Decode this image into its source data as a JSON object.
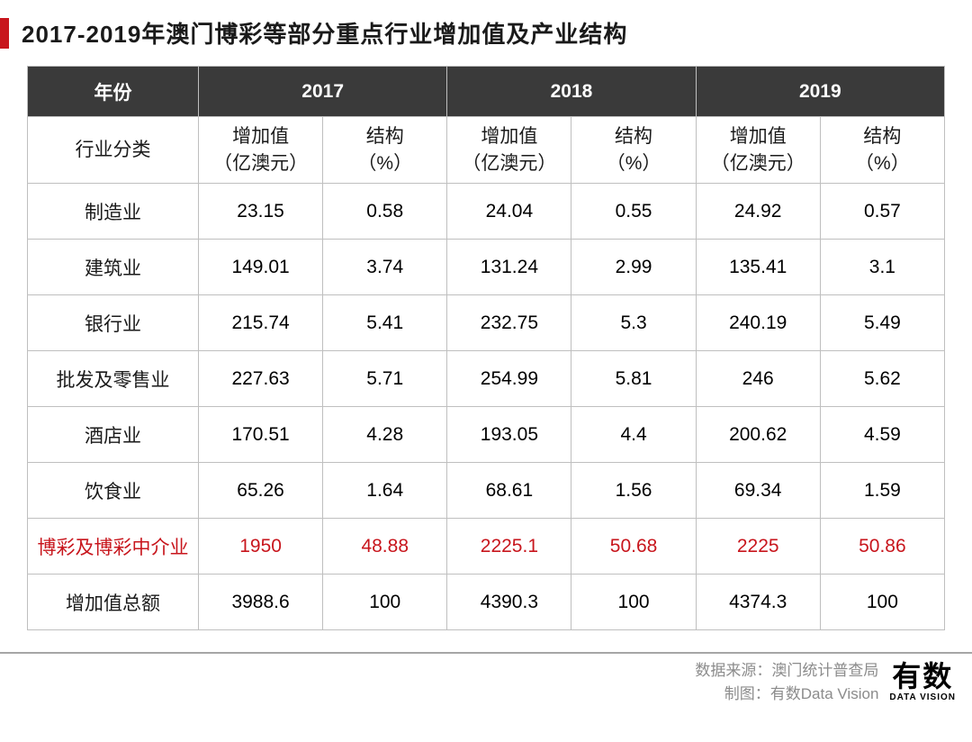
{
  "title": "2017-2019年澳门博彩等部分重点行业增加值及产业结构",
  "table": {
    "header": {
      "year_label": "年份",
      "years": [
        "2017",
        "2018",
        "2019"
      ],
      "category_label": "行业分类",
      "sub_headers": {
        "value": "增加值\n（亿澳元）",
        "pct": "结构\n（%）"
      }
    },
    "rows": [
      {
        "label": "制造业",
        "v17": "23.15",
        "p17": "0.58",
        "v18": "24.04",
        "p18": "0.55",
        "v19": "24.92",
        "p19": "0.57",
        "highlight": false
      },
      {
        "label": "建筑业",
        "v17": "149.01",
        "p17": "3.74",
        "v18": "131.24",
        "p18": "2.99",
        "v19": "135.41",
        "p19": "3.1",
        "highlight": false
      },
      {
        "label": "银行业",
        "v17": "215.74",
        "p17": "5.41",
        "v18": "232.75",
        "p18": "5.3",
        "v19": "240.19",
        "p19": "5.49",
        "highlight": false
      },
      {
        "label": "批发及零售业",
        "v17": "227.63",
        "p17": "5.71",
        "v18": "254.99",
        "p18": "5.81",
        "v19": "246",
        "p19": "5.62",
        "highlight": false
      },
      {
        "label": "酒店业",
        "v17": "170.51",
        "p17": "4.28",
        "v18": "193.05",
        "p18": "4.4",
        "v19": "200.62",
        "p19": "4.59",
        "highlight": false
      },
      {
        "label": "饮食业",
        "v17": "65.26",
        "p17": "1.64",
        "v18": "68.61",
        "p18": "1.56",
        "v19": "69.34",
        "p19": "1.59",
        "highlight": false
      },
      {
        "label": "博彩及博彩中介业",
        "v17": "1950",
        "p17": "48.88",
        "v18": "2225.1",
        "p18": "50.68",
        "v19": "2225",
        "p19": "50.86",
        "highlight": true
      },
      {
        "label": "增加值总额",
        "v17": "3988.6",
        "p17": "100",
        "v18": "4390.3",
        "p18": "100",
        "v19": "4374.3",
        "p19": "100",
        "highlight": false
      }
    ]
  },
  "footer": {
    "source_label": "数据来源：",
    "source_value": "澳门统计普查局",
    "maker_label": "制图：",
    "maker_value": "有数Data Vision",
    "logo_main": "有数",
    "logo_sub": "DATA VISION"
  },
  "colors": {
    "accent_red": "#c8161d",
    "header_bg": "#3a3a3a",
    "border": "#bfbfbf",
    "footer_text": "#8c8c8c",
    "footer_rule": "#a6a6a6"
  }
}
